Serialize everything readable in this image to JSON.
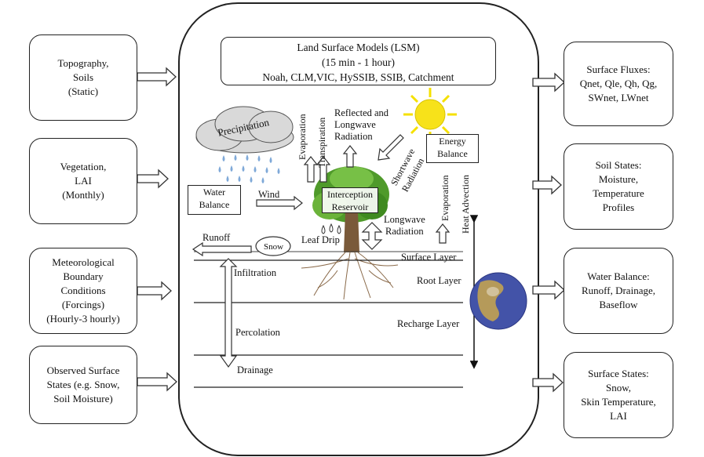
{
  "title": {
    "line1": "Land Surface Models (LSM)",
    "line2": "(15 min - 1 hour)",
    "line3": "Noah, CLM,VIC, HySSIB, SSIB, Catchment"
  },
  "inputs": [
    {
      "lines": [
        "Topography,",
        "Soils",
        "(Static)"
      ]
    },
    {
      "lines": [
        "Vegetation,",
        "LAI",
        "(Monthly)"
      ]
    },
    {
      "lines": [
        "Meteorological",
        "Boundary",
        "Conditions",
        "(Forcings)",
        "(Hourly-3 hourly)"
      ]
    },
    {
      "lines": [
        "Observed Surface",
        "States (e.g. Snow,",
        "Soil Moisture)"
      ]
    }
  ],
  "outputs": [
    {
      "lines": [
        "Surface Fluxes:",
        "Qnet, Qle, Qh, Qg,",
        "SWnet, LWnet"
      ]
    },
    {
      "lines": [
        "Soil States:",
        "Moisture,",
        "Temperature",
        "Profiles"
      ]
    },
    {
      "lines": [
        "Water Balance:",
        "Runoff, Drainage,",
        "Baseflow"
      ]
    },
    {
      "lines": [
        "Surface States:",
        "Snow,",
        "Skin Temperature,",
        "LAI"
      ]
    }
  ],
  "labels": {
    "precipitation": "Precipitation",
    "evaporation": "Evaporation",
    "transpiration": "Transpiration",
    "reflected_1": "Reflected and",
    "reflected_2": "Longwave",
    "reflected_3": "Radiation",
    "shortwave_1": "Shortwave",
    "shortwave_2": "Radiation",
    "energy_1": "Energy",
    "energy_2": "Balance",
    "water_1": "Water",
    "water_2": "Balance",
    "wind": "Wind",
    "interception_1": "Interception",
    "interception_2": "Reservoir",
    "evaporation2": "Evaporation",
    "heat_advection": "Heat Advection",
    "longwave_1": "Longwave",
    "longwave_2": "Radiation",
    "runoff": "Runoff",
    "snow": "Snow",
    "leaf_drip": "Leaf Drip",
    "surface_layer": "Surface Layer",
    "root_layer": "Root Layer",
    "infiltration": "Infiltration",
    "recharge_layer": "Recharge Layer",
    "percolation": "Percolation",
    "drainage": "Drainage"
  },
  "colors": {
    "sun": "#f5e000",
    "cloud": "#d9d9d9",
    "rain": "#7fa9d8",
    "tree_canopy": "#4f9a2a",
    "globe_ocean": "#4353a8",
    "globe_land": "#b59a5a"
  }
}
